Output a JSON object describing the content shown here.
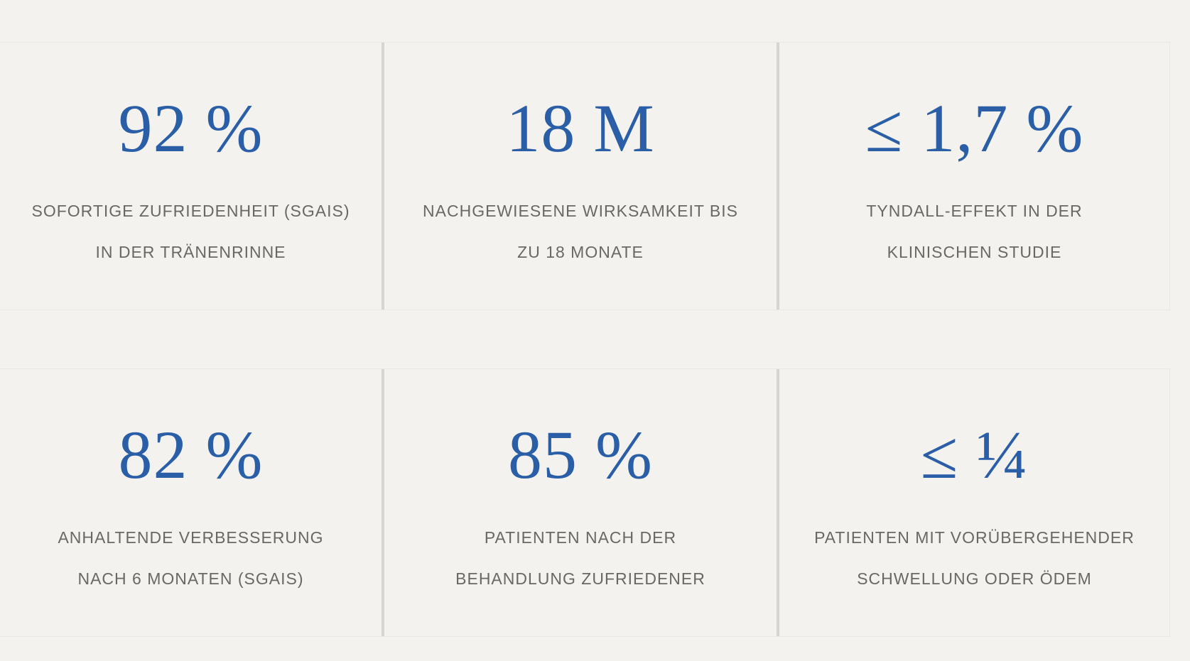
{
  "accent_color": "#2a5fa8",
  "stats": [
    {
      "value": "92 %",
      "line1": "SOFORTIGE ZUFRIEDENHEIT (SGAIS)",
      "line2": "IN DER TRÄNENRINNE"
    },
    {
      "value": "18 M",
      "line1": "NACHGEWIESENE WIRKSAMKEIT BIS",
      "line2": "ZU 18 MONATE"
    },
    {
      "value": "≤ 1,7 %",
      "line1": "TYNDALL-EFFEKT IN DER",
      "line2": "KLINISCHEN STUDIE"
    },
    {
      "value": "82 %",
      "line1": "ANHALTENDE VERBESSERUNG",
      "line2": "NACH 6 MONATEN (SGAIS)"
    },
    {
      "value": "85 %",
      "line1": "PATIENTEN NACH DER",
      "line2": "BEHANDLUNG ZUFRIEDENER"
    },
    {
      "value": "≤ ¼",
      "line1": "PATIENTEN MIT VORÜBERGEHENDER",
      "line2": "SCHWELLUNG ODER ÖDEM"
    }
  ]
}
